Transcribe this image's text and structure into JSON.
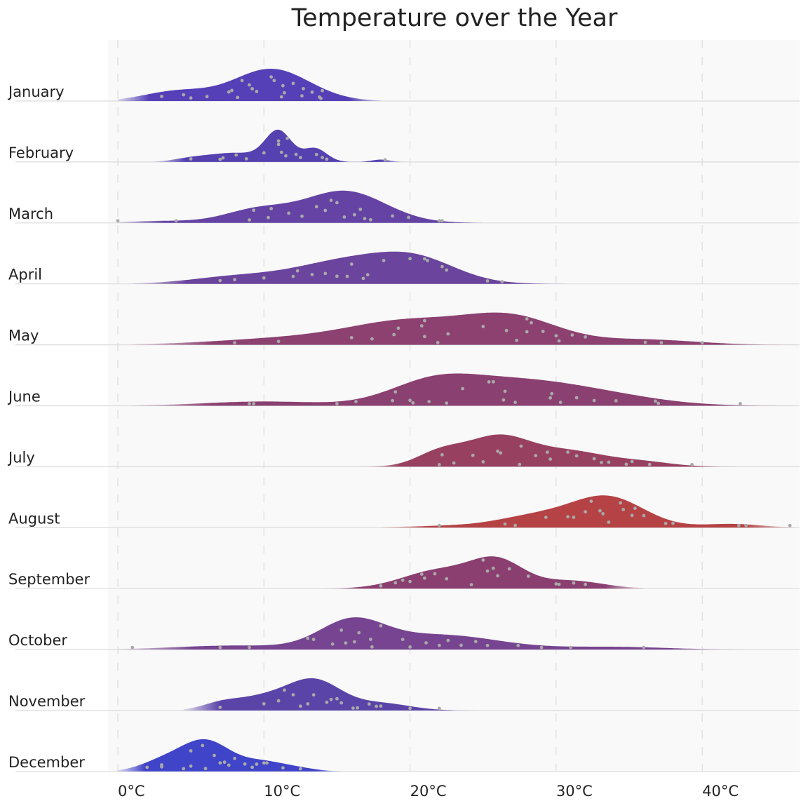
{
  "chart_data": {
    "type": "ridgeline",
    "title": "Temperature over the Year",
    "xlabel": "",
    "ylabel": "",
    "xlim": [
      -0.7,
      46.6
    ],
    "x_ticks": [
      0,
      10,
      20,
      30,
      40
    ],
    "x_tick_labels": [
      "0°C",
      "10°C",
      "20°C",
      "30°C",
      "40°C"
    ],
    "grid": "vertical dashed",
    "point_color": "#a9a9a9",
    "series": [
      {
        "name": "January",
        "color": "#5540b8",
        "components": [
          [
            10.5,
            2.6,
            1.0
          ],
          [
            4,
            2.2,
            0.3
          ]
        ],
        "range": [
          0,
          18
        ],
        "points": [
          3,
          4.5,
          5,
          6.1,
          7.6,
          7.8,
          8.2,
          8.5,
          9,
          9.2,
          9.5,
          10.5,
          10.7,
          11.2,
          11.3,
          11.4,
          12,
          12.6,
          12.7,
          13.3,
          13.8,
          13.9,
          14
        ]
      },
      {
        "name": "February",
        "color": "#5541b0",
        "components": [
          [
            11,
            0.9,
            1.0
          ],
          [
            13.5,
            0.8,
            0.45
          ],
          [
            8,
            1.8,
            0.3
          ],
          [
            5,
            1.2,
            0.1
          ],
          [
            18,
            0.6,
            0.08
          ]
        ],
        "range": [
          2.5,
          20
        ],
        "points": [
          5,
          7,
          7.2,
          8.1,
          8.8,
          10,
          11,
          11,
          11.2,
          11.5,
          11.6,
          12.2,
          12.5,
          13.6,
          14,
          14.3,
          18.3
        ]
      },
      {
        "name": "March",
        "color": "#6443a5",
        "components": [
          [
            15.5,
            2.8,
            1.0
          ],
          [
            9.5,
            2.2,
            0.4
          ],
          [
            3,
            2.5,
            0.06
          ]
        ],
        "range": [
          0,
          27
        ],
        "points": [
          0,
          4,
          9,
          9.3,
          10.3,
          10.5,
          11.7,
          12.6,
          13.6,
          14.2,
          14.6,
          15,
          15.5,
          16.2,
          16.6,
          16.9,
          17.3,
          18.8,
          19.9,
          22,
          22.2
        ]
      },
      {
        "name": "April",
        "color": "#6a449d",
        "components": [
          [
            15.5,
            3.5,
            0.8
          ],
          [
            20.5,
            2.8,
            0.8
          ],
          [
            8,
            3,
            0.25
          ]
        ],
        "range": [
          1,
          32
        ],
        "points": [
          7,
          8,
          10,
          12,
          12.3,
          13.3,
          14.2,
          15,
          15.7,
          16,
          16.8,
          17.1,
          18.2,
          20,
          21,
          21.2,
          22.2,
          22.5,
          25.3,
          26.3
        ]
      },
      {
        "name": "May",
        "color": "#8c4170",
        "components": [
          [
            27,
            3.2,
            1.0
          ],
          [
            20,
            4,
            0.85
          ],
          [
            12,
            5,
            0.25
          ],
          [
            36,
            3.5,
            0.2
          ]
        ],
        "range": [
          1,
          46.5
        ],
        "points": [
          8,
          11,
          16,
          17.4,
          18.9,
          19.2,
          20.8,
          21,
          21,
          21.9,
          22.6,
          25,
          26.6,
          27.3,
          28,
          28,
          28.3,
          29.1,
          30,
          30.2,
          31.1,
          32,
          36.1,
          37.2,
          40
        ]
      },
      {
        "name": "June",
        "color": "#8a4070",
        "components": [
          [
            21.5,
            3,
            0.75
          ],
          [
            27,
            4,
            0.75
          ],
          [
            33,
            4,
            0.35
          ],
          [
            10,
            4,
            0.15
          ]
        ],
        "range": [
          1,
          46.5
        ],
        "points": [
          9,
          9.3,
          15,
          16.3,
          18.8,
          19,
          20,
          20.2,
          21.3,
          22.5,
          23.6,
          25.4,
          25.7,
          26.4,
          26.5,
          27.2,
          29.6,
          29.7,
          30.3,
          31.4,
          32.6,
          34.1,
          36.8,
          37,
          42.6
        ]
      },
      {
        "name": "July",
        "color": "#98405f",
        "components": [
          [
            26,
            2.2,
            1.0
          ],
          [
            22,
            1.6,
            0.45
          ],
          [
            31,
            2.5,
            0.5
          ],
          [
            36,
            2,
            0.15
          ]
        ],
        "range": [
          16,
          44
        ],
        "points": [
          22,
          22.2,
          23,
          24.3,
          25,
          26,
          26.2,
          27.5,
          27.6,
          28.6,
          29.4,
          29.6,
          30.8,
          31.4,
          32.6,
          33.1,
          33.6,
          34.8,
          35.2,
          36.4,
          39.3
        ]
      },
      {
        "name": "August",
        "color": "#b54244",
        "components": [
          [
            33.5,
            2.5,
            1.0
          ],
          [
            28.5,
            2.5,
            0.35
          ],
          [
            42,
            2,
            0.12
          ],
          [
            23,
            3,
            0.06
          ]
        ],
        "range": [
          18,
          46.3
        ],
        "points": [
          22,
          26.5,
          27.2,
          29.3,
          30.8,
          31.2,
          32,
          32.4,
          33,
          33.2,
          33.6,
          34.4,
          34.6,
          35.2,
          35.4,
          36,
          37.5,
          38,
          42.5,
          43,
          46
        ]
      },
      {
        "name": "September",
        "color": "#8a3f70",
        "components": [
          [
            26,
            1.8,
            1.0
          ],
          [
            22,
            2.5,
            0.7
          ],
          [
            31,
            2.2,
            0.3
          ]
        ],
        "range": [
          14,
          36
        ],
        "points": [
          18,
          19,
          19.5,
          20,
          20.8,
          21,
          21.7,
          22.5,
          24.2,
          25,
          25.3,
          25.7,
          26,
          26.8,
          28.1,
          30,
          30.2,
          31.2,
          32
        ]
      },
      {
        "name": "October",
        "color": "#764490",
        "components": [
          [
            16,
            2.2,
            1.0
          ],
          [
            22,
            4,
            0.55
          ],
          [
            8,
            4,
            0.15
          ],
          [
            34,
            3.5,
            0.1
          ]
        ],
        "range": [
          0,
          43
        ],
        "points": [
          1,
          7,
          9,
          13,
          13.4,
          14.7,
          15.3,
          15.6,
          16.2,
          16.5,
          17.3,
          17.4,
          18,
          19.5,
          20,
          21.1,
          22,
          22.6,
          23.5,
          24.5,
          25.3,
          27.4,
          29,
          31,
          36
        ]
      },
      {
        "name": "November",
        "color": "#5b44a8",
        "components": [
          [
            13.5,
            1.8,
            1.0
          ],
          [
            10,
            2,
            0.45
          ],
          [
            7,
            1.3,
            0.2
          ],
          [
            18,
            2,
            0.25
          ]
        ],
        "range": [
          4.5,
          25
        ],
        "points": [
          7,
          10,
          11,
          11.4,
          12,
          12.5,
          13,
          13.4,
          14.3,
          14.6,
          15,
          15.3,
          16.1,
          16.4,
          17.2,
          17.7,
          18,
          20,
          22
        ]
      },
      {
        "name": "December",
        "color": "#4044c8",
        "components": [
          [
            6,
            1.7,
            1.0
          ],
          [
            3,
            1.5,
            0.3
          ],
          [
            10,
            1.5,
            0.3
          ],
          [
            12.5,
            1.2,
            0.08
          ]
        ],
        "range": [
          0,
          15.5
        ],
        "points": [
          2,
          3,
          3,
          4.5,
          5,
          5,
          5.8,
          6,
          6.6,
          7,
          7.3,
          7.6,
          8,
          8.7,
          9.2,
          9.5,
          10,
          10.2,
          11.3,
          12.5
        ]
      }
    ]
  }
}
